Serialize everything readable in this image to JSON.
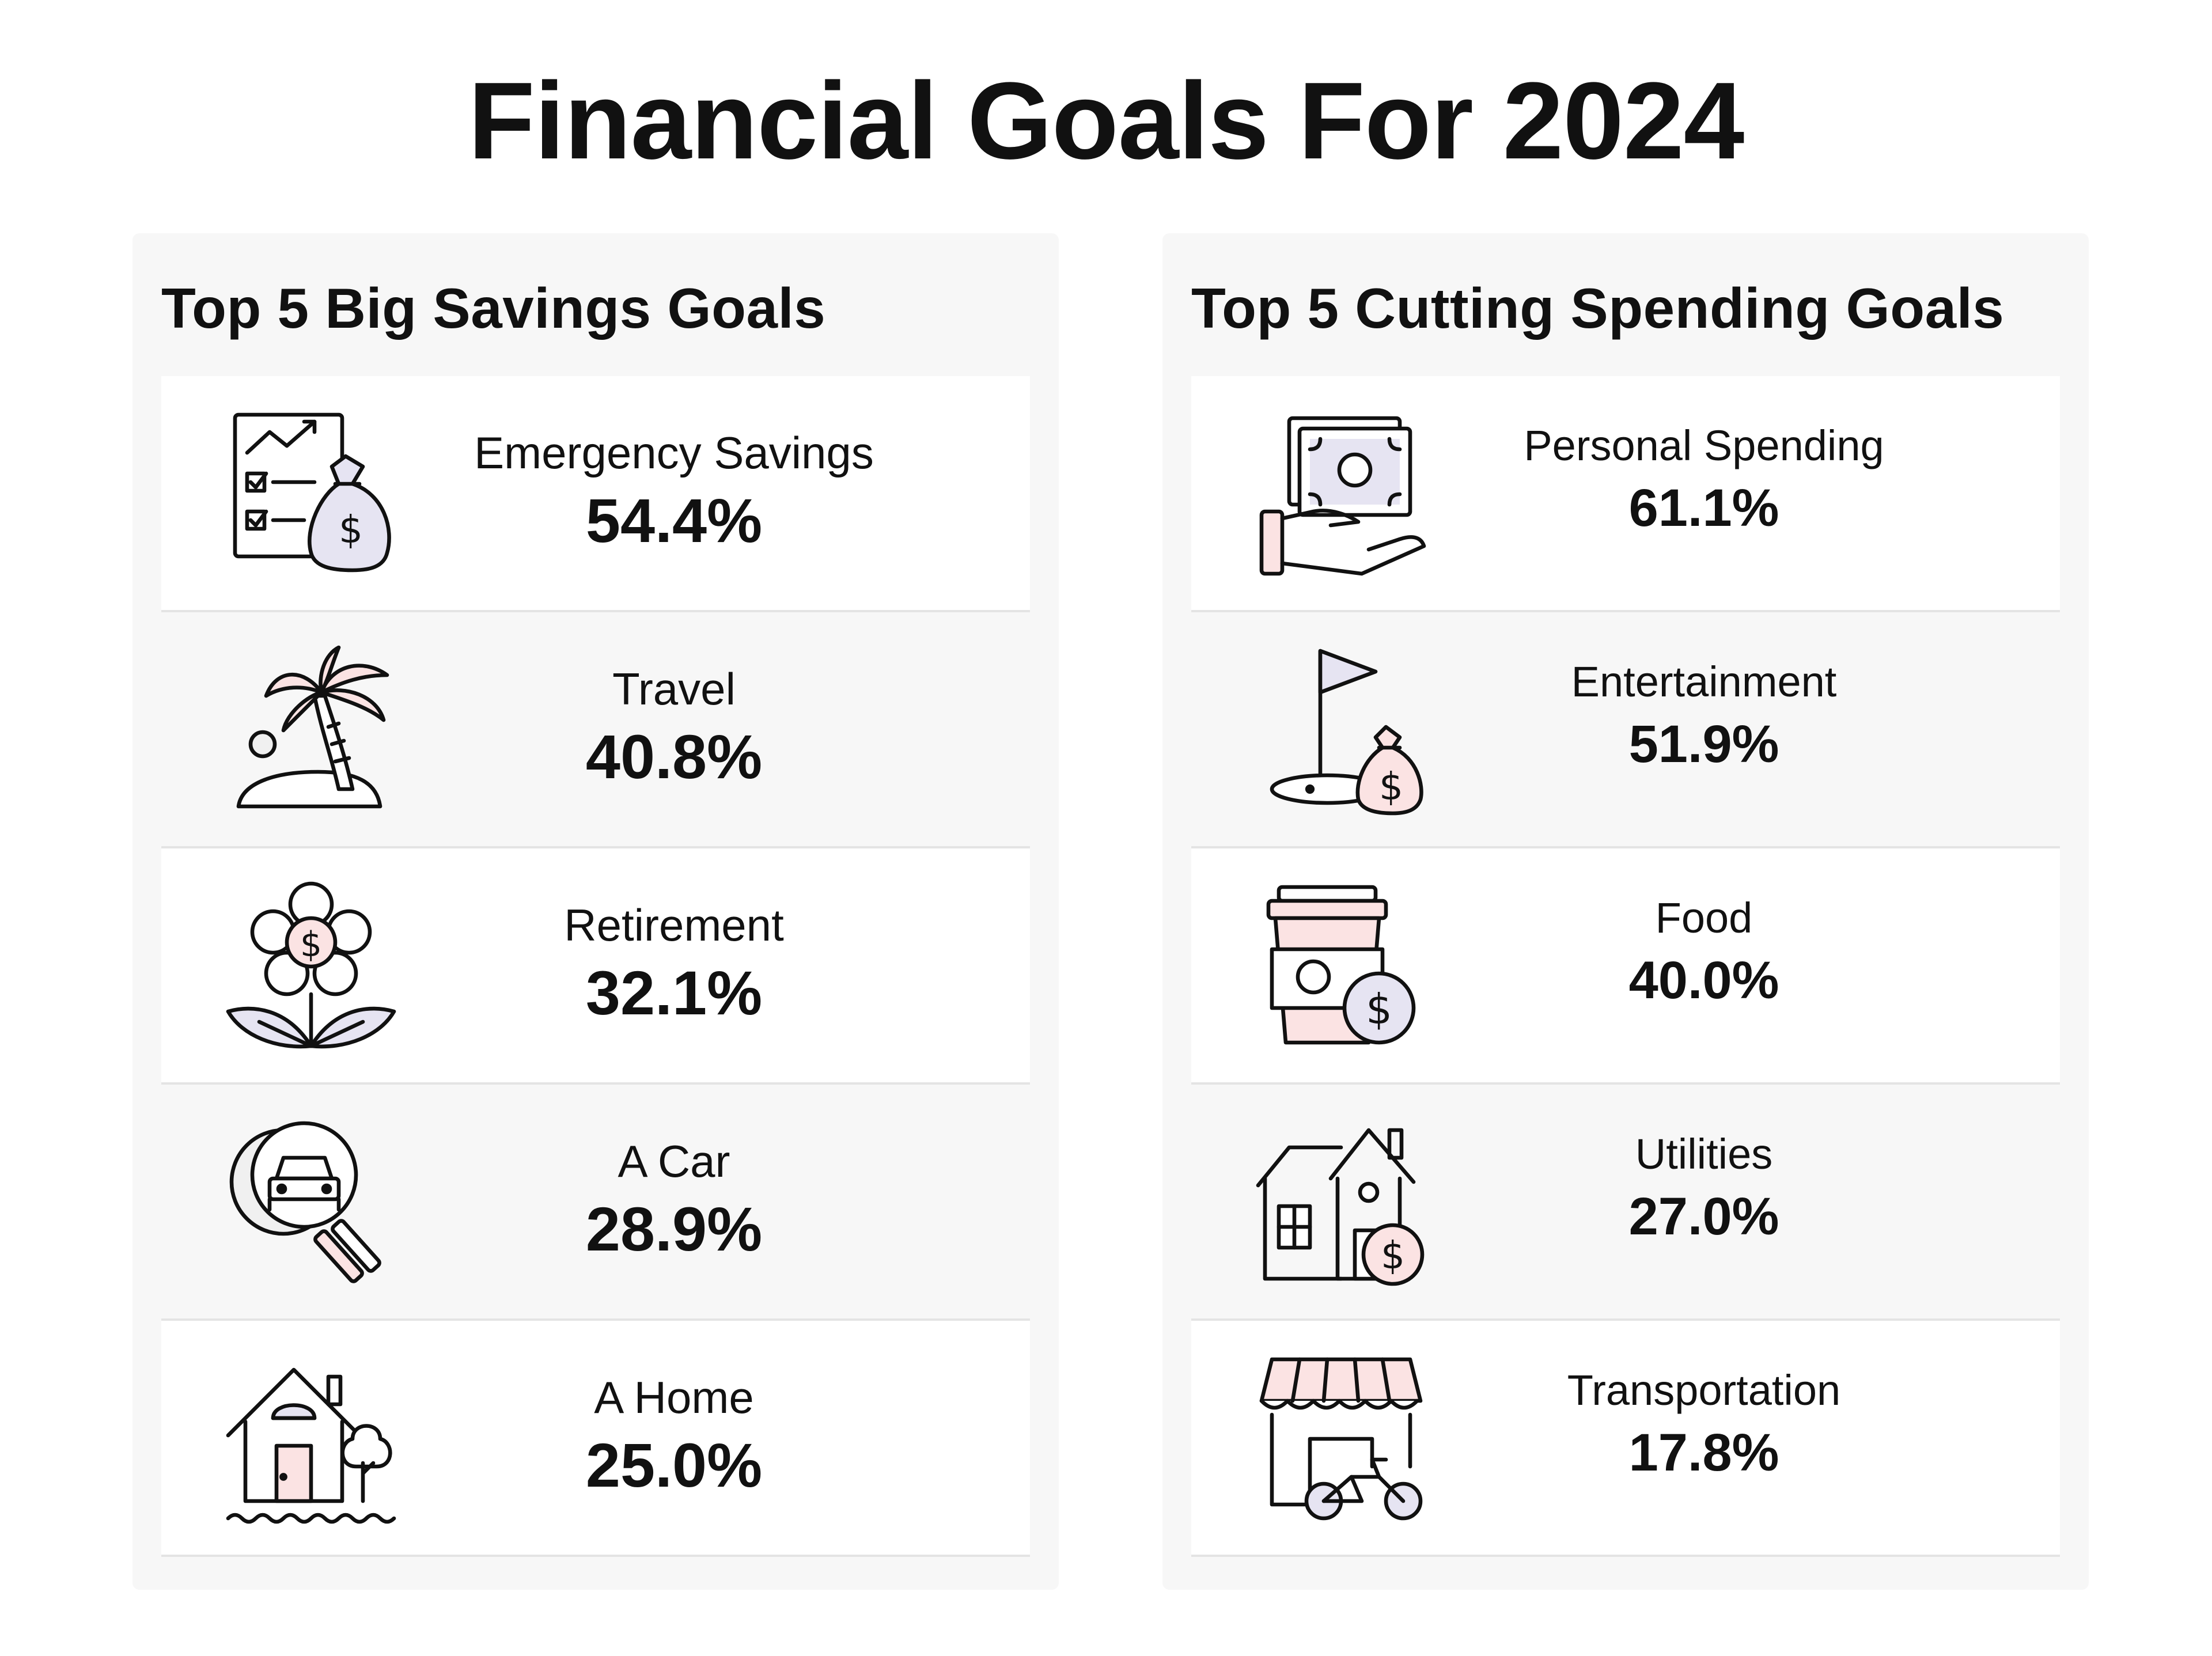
{
  "title": "Financial Goals For 2024",
  "colors": {
    "pink": "#fbe3e3",
    "lavender": "#e6e4f2",
    "panel": "#f7f7f7",
    "ink": "#111111"
  },
  "left_panel": {
    "title": "Top 5 Big Savings Goals",
    "items": [
      {
        "label": "Emergency Savings",
        "value": "54.4%",
        "icon": "checklist-money-bag-icon"
      },
      {
        "label": "Travel",
        "value": "40.8%",
        "icon": "palm-tree-island-icon"
      },
      {
        "label": "Retirement",
        "value": "32.1%",
        "icon": "money-flower-icon"
      },
      {
        "label": "A Car",
        "value": "28.9%",
        "icon": "car-magnifier-icon"
      },
      {
        "label": "A Home",
        "value": "25.0%",
        "icon": "house-tree-icon"
      }
    ]
  },
  "right_panel": {
    "title": "Top 5 Cutting Spending Goals",
    "items": [
      {
        "label": "Personal Spending",
        "value": "61.1%",
        "icon": "hand-cash-icon"
      },
      {
        "label": "Entertainment",
        "value": "51.9%",
        "icon": "golf-flag-money-icon"
      },
      {
        "label": "Food",
        "value": "40.0%",
        "icon": "coffee-cup-coin-icon"
      },
      {
        "label": "Utilities",
        "value": "27.0%",
        "icon": "house-coin-icon"
      },
      {
        "label": "Transportation",
        "value": "17.8%",
        "icon": "storefront-bike-icon"
      }
    ]
  }
}
